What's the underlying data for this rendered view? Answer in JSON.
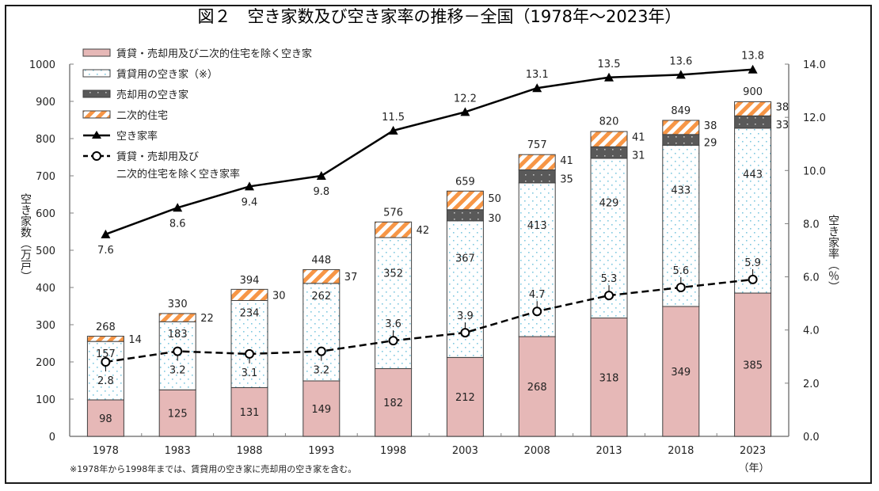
{
  "chart_data": {
    "type": "bar",
    "subtype": "stacked-bar-with-lines",
    "title": "図２　空き家数及び空き家率の推移－全国（1978年～2023年）",
    "categories": [
      "1978",
      "1983",
      "1988",
      "1993",
      "1998",
      "2003",
      "2008",
      "2013",
      "2018",
      "2023"
    ],
    "xlabel": "（年）",
    "ylabel": "空き家数（万戸）",
    "ylabel_right": "空き家率（％）",
    "ylim": [
      0,
      1000
    ],
    "ylim_right": [
      0,
      14.0
    ],
    "yticks": [
      "0",
      "100",
      "200",
      "300",
      "400",
      "500",
      "600",
      "700",
      "800",
      "900",
      "1000"
    ],
    "yticks_right": [
      "0.0",
      "2.0",
      "4.0",
      "6.0",
      "8.0",
      "10.0",
      "12.0",
      "14.0"
    ],
    "grid": false,
    "legend_position": "top-left",
    "series": [
      {
        "name": "賃貸・売却用及び二次的住宅を除く空き家",
        "kind": "bar",
        "color": "#e6b8b7",
        "values": [
          98,
          125,
          131,
          149,
          182,
          212,
          268,
          318,
          349,
          385
        ]
      },
      {
        "name": "賃貸用の空き家（※）",
        "kind": "bar",
        "color": "#ffffff",
        "dot_color": "#7fc8e0",
        "values": [
          157,
          183,
          234,
          262,
          352,
          367,
          413,
          429,
          433,
          443
        ]
      },
      {
        "name": "売却用の空き家",
        "kind": "bar",
        "color": "#595959",
        "dot_color": "#a6a6a6",
        "values": [
          null,
          null,
          null,
          null,
          null,
          30,
          35,
          31,
          29,
          33
        ]
      },
      {
        "name": "二次的住宅",
        "kind": "bar",
        "color": "#f79646",
        "values": [
          14,
          22,
          30,
          37,
          42,
          50,
          41,
          41,
          38,
          38
        ]
      },
      {
        "name": "空き家率",
        "kind": "line",
        "axis": "right",
        "marker": "triangle",
        "values": [
          7.6,
          8.6,
          9.4,
          9.8,
          11.5,
          12.2,
          13.1,
          13.5,
          13.6,
          13.8
        ],
        "labels": [
          "7.6",
          "8.6",
          "9.4",
          "9.8",
          "11.5",
          "12.2",
          "13.1",
          "13.5",
          "13.6",
          "13.8"
        ]
      },
      {
        "name": "賃貸・売却用及び二次的住宅を除く空き家率",
        "legend_lines": [
          "賃貸・売却用及び",
          "二次的住宅を除く空き家率"
        ],
        "kind": "line",
        "axis": "right",
        "dashed": true,
        "marker": "circle",
        "values": [
          2.8,
          3.2,
          3.1,
          3.2,
          3.6,
          3.9,
          4.7,
          5.3,
          5.6,
          5.9
        ],
        "labels": [
          "2.8",
          "3.2",
          "3.1",
          "3.2",
          "3.6",
          "3.9",
          "4.7",
          "5.3",
          "5.6",
          "5.9"
        ]
      }
    ],
    "totals": [
      268,
      330,
      394,
      448,
      576,
      659,
      757,
      820,
      849,
      900
    ],
    "footnote": "※1978年から1998年までは、賃貸用の空き家に売却用の空き家を含む。"
  }
}
